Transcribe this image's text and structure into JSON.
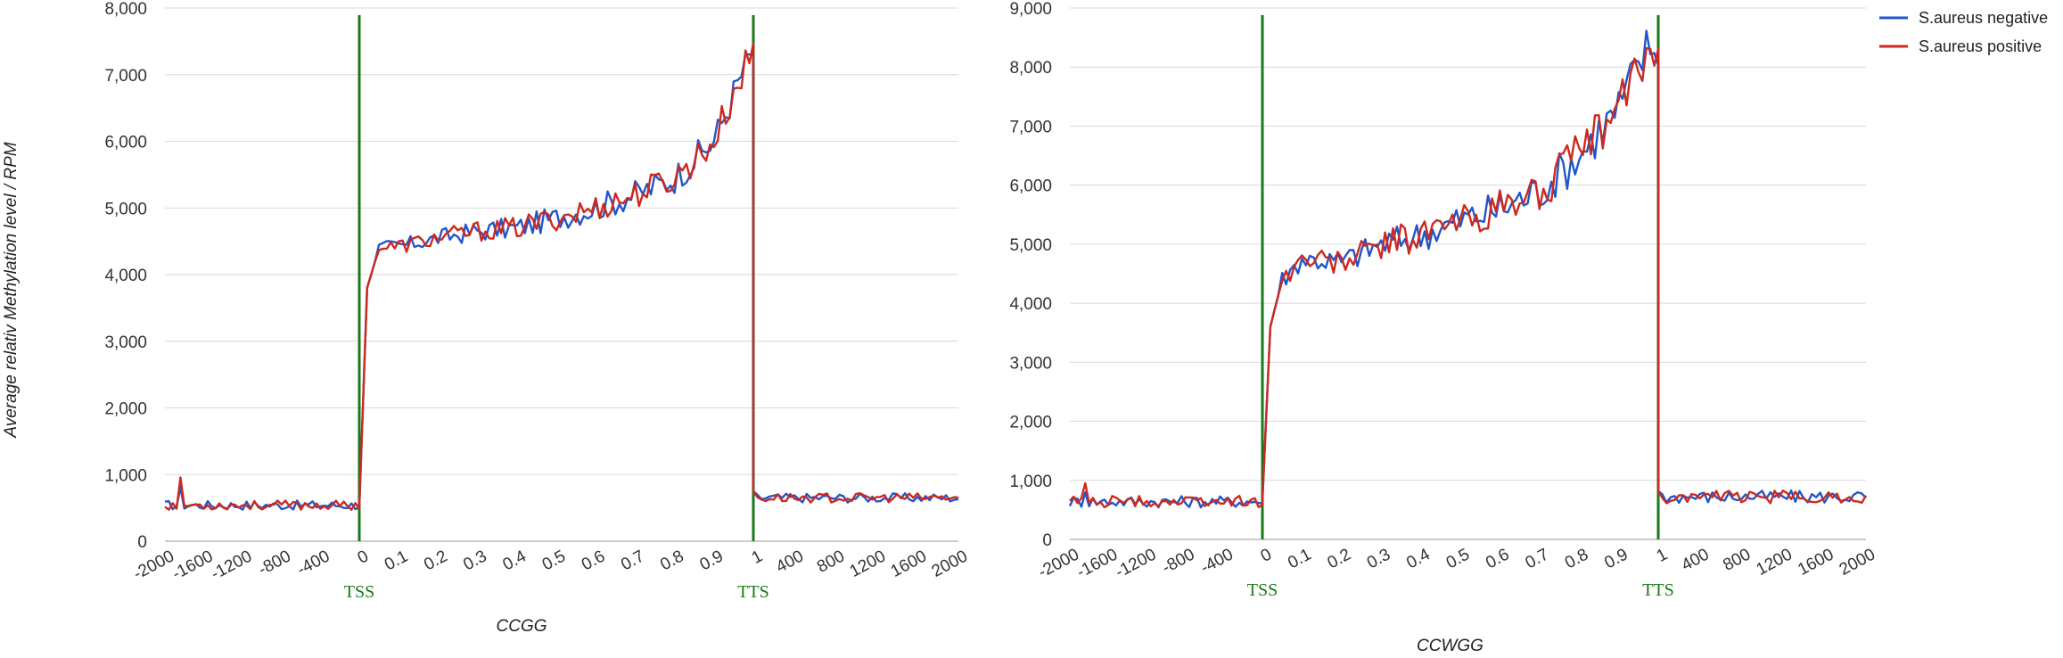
{
  "ylabel": "Average relativ Methylation level / RPM",
  "legend": [
    {
      "name": "S.aureus negative",
      "color": "#2255cc"
    },
    {
      "name": "S.aureus positive",
      "color": "#cc2a1e"
    }
  ],
  "colors": {
    "tss_tts_line": "#1a7a1a",
    "grid": "#d9d9d9"
  },
  "chart_data": [
    {
      "type": "line",
      "xlabel": "CCGG",
      "ylim": [
        0,
        8000
      ],
      "yticks": [
        0,
        1000,
        2000,
        3000,
        4000,
        5000,
        6000,
        7000,
        8000
      ],
      "ytick_labels": [
        "0",
        "1,000",
        "2,000",
        "3,000",
        "4,000",
        "5,000",
        "6,000",
        "7,000",
        "8,000"
      ],
      "xtick_labels": [
        "-2000",
        "-1600",
        "-1200",
        "-800",
        "-400",
        "0",
        "0.1",
        "0.2",
        "0.3",
        "0.4",
        "0.5",
        "0.6",
        "0.7",
        "0.8",
        "0.9",
        "1",
        "400",
        "800",
        "1200",
        "1600",
        "2000"
      ],
      "markers": [
        {
          "label": "TSS",
          "at": "0"
        },
        {
          "label": "TTS",
          "at": "1"
        }
      ],
      "regions": {
        "upstream": {
          "x": [
            -2000,
            0
          ],
          "base": 540,
          "noise": 70
        },
        "body": {
          "x": [
            0,
            1
          ],
          "points": [
            [
              0,
              500
            ],
            [
              0.02,
              3800
            ],
            [
              0.05,
              4400
            ],
            [
              0.1,
              4420
            ],
            [
              0.2,
              4550
            ],
            [
              0.3,
              4650
            ],
            [
              0.4,
              4700
            ],
            [
              0.5,
              4850
            ],
            [
              0.6,
              5000
            ],
            [
              0.7,
              5200
            ],
            [
              0.8,
              5450
            ],
            [
              0.9,
              6000
            ],
            [
              0.97,
              7000
            ],
            [
              1,
              7350
            ]
          ],
          "noise": 170
        },
        "downstream": {
          "x": [
            0,
            2000
          ],
          "base": 650,
          "noise": 70
        }
      }
    },
    {
      "type": "line",
      "xlabel": "CCWGG",
      "ylim": [
        0,
        9000
      ],
      "yticks": [
        0,
        1000,
        2000,
        3000,
        4000,
        5000,
        6000,
        7000,
        8000,
        9000
      ],
      "ytick_labels": [
        "0",
        "1,000",
        "2,000",
        "3,000",
        "4,000",
        "5,000",
        "6,000",
        "7,000",
        "8,000",
        "9,000"
      ],
      "xtick_labels": [
        "-2000",
        "-1600",
        "-1200",
        "-800",
        "-400",
        "0",
        "0.1",
        "0.2",
        "0.3",
        "0.4",
        "0.5",
        "0.6",
        "0.7",
        "0.8",
        "0.9",
        "1",
        "400",
        "800",
        "1200",
        "1600",
        "2000"
      ],
      "markers": [
        {
          "label": "TSS",
          "at": "0"
        },
        {
          "label": "TTS",
          "at": "1"
        }
      ],
      "regions": {
        "upstream": {
          "x": [
            -2000,
            0
          ],
          "base": 640,
          "noise": 100
        },
        "body": {
          "x": [
            0,
            1
          ],
          "points": [
            [
              0,
              650
            ],
            [
              0.02,
              3600
            ],
            [
              0.05,
              4400
            ],
            [
              0.1,
              4750
            ],
            [
              0.2,
              4700
            ],
            [
              0.3,
              5000
            ],
            [
              0.4,
              5150
            ],
            [
              0.5,
              5400
            ],
            [
              0.6,
              5600
            ],
            [
              0.7,
              5900
            ],
            [
              0.8,
              6500
            ],
            [
              0.9,
              7300
            ],
            [
              0.97,
              8300
            ],
            [
              1,
              8350
            ]
          ],
          "noise": 280
        },
        "downstream": {
          "x": [
            0,
            2000
          ],
          "base": 720,
          "noise": 110
        }
      }
    }
  ]
}
